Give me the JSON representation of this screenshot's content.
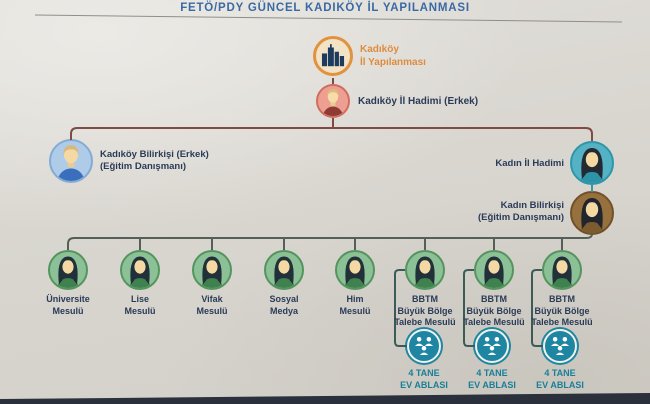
{
  "title": "FETÖ/PDY GÜNCEL KADIKÖY İL YAPILANMASI",
  "org": {
    "root": {
      "label": "Kadıköy\nİl Yapılanması"
    },
    "leader": {
      "label": "Kadıköy İl Hadimi (Erkek)"
    },
    "male_advisor": {
      "label": "Kadıköy Bilirkişi (Erkek)\n(Eğitim Danışmanı)"
    },
    "female_leader": {
      "label": "Kadın İl Hadimi"
    },
    "female_advisor": {
      "label": "Kadın Bilirkişi\n(Eğitim Danışmanı)"
    },
    "managers": [
      {
        "label": "Üniversite\nMesulü"
      },
      {
        "label": "Lise\nMesulü"
      },
      {
        "label": "Vifak\nMesulü"
      },
      {
        "label": "Sosyal\nMedya"
      },
      {
        "label": "Him\nMesulü"
      },
      {
        "label": "BBTM\nBüyük Bölge\nTalebe Mesulü"
      },
      {
        "label": "BBTM\nBüyük Bölge\nTalebe Mesulü"
      },
      {
        "label": "BBTM\nBüyük Bölge\nTalebe Mesulü"
      }
    ],
    "house_groups": [
      {
        "label": "4 TANE\nEV ABLASI"
      },
      {
        "label": "4 TANE\nEV ABLASI"
      },
      {
        "label": "4 TANE\nEV ABLASI"
      }
    ]
  },
  "colors": {
    "title_text": "#3b69a4",
    "root_label": "#dd8c3e",
    "node_label": "#2a3b57",
    "house_label": "#1a7e99",
    "upper_lines": "#7f4b44",
    "lower_lines": "#565f57",
    "house_lines": "#3c5b57",
    "group_circle": "#1e86a3"
  }
}
